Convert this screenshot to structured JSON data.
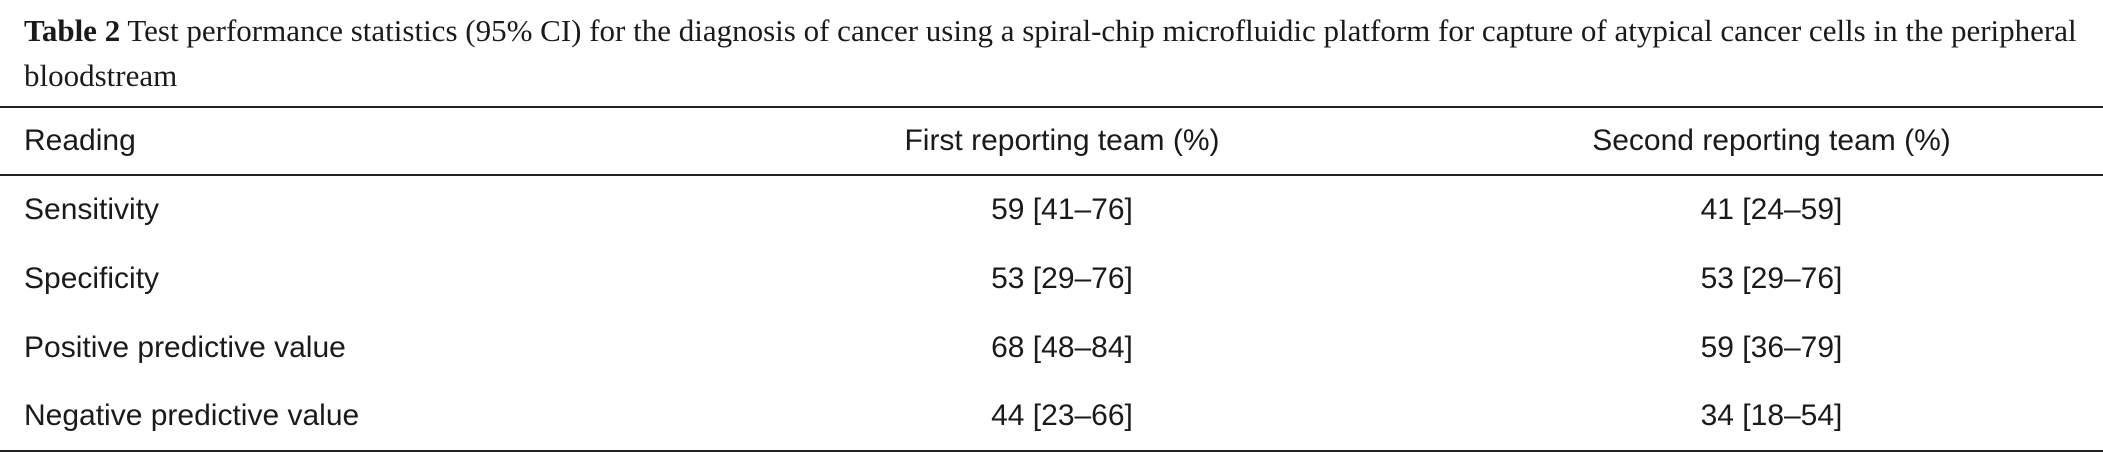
{
  "caption": {
    "label": "Table 2",
    "text": "Test performance statistics (95% CI) for the diagnosis of cancer using a spiral-chip microfluidic platform for capture of atypical cancer cells in the peripheral bloodstream"
  },
  "table": {
    "headers": {
      "reading": "Reading",
      "first": "First reporting team (%)",
      "second": "Second reporting team (%)"
    },
    "rows": [
      {
        "reading": "Sensitivity",
        "first": "59 [41–76]",
        "second": "41 [24–59]"
      },
      {
        "reading": "Specificity",
        "first": "53 [29–76]",
        "second": "53 [29–76]"
      },
      {
        "reading": "Positive predictive value",
        "first": "68 [48–84]",
        "second": "59 [36–79]"
      },
      {
        "reading": "Negative predictive value",
        "first": "44 [23–66]",
        "second": "34 [18–54]"
      }
    ]
  }
}
